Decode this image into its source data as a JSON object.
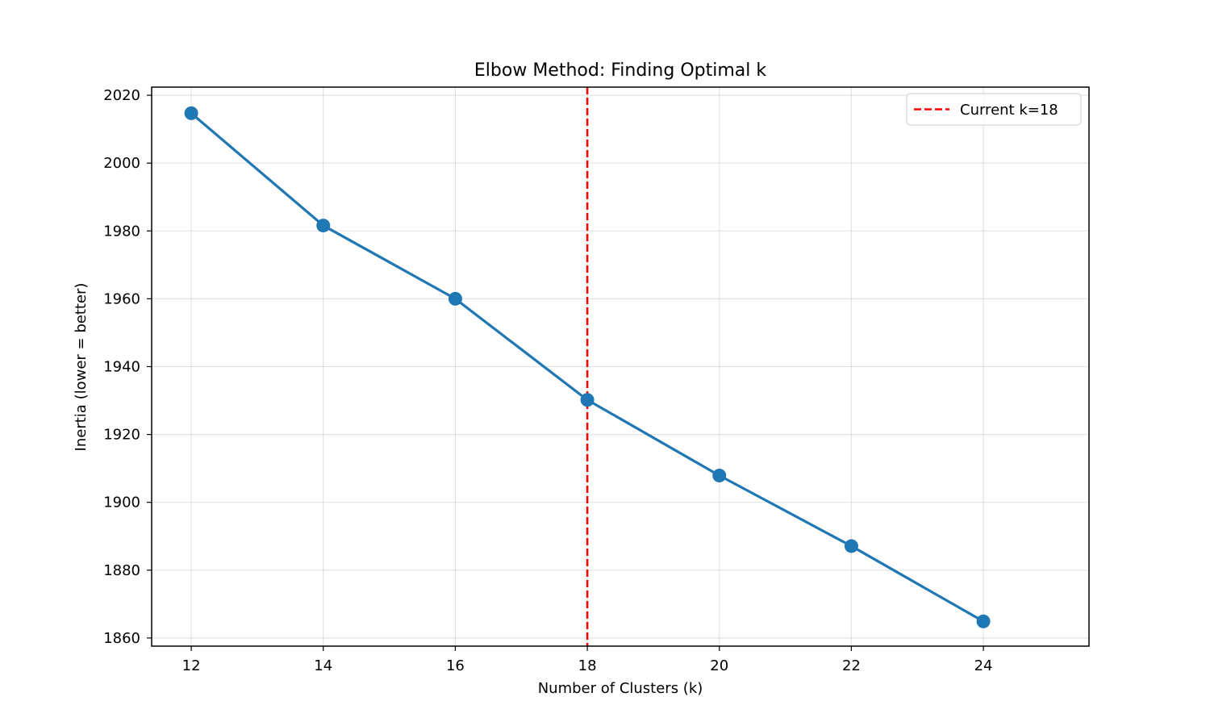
{
  "chart_data": {
    "type": "line",
    "title": "Elbow Method: Finding Optimal k",
    "xlabel": "Number of Clusters (k)",
    "ylabel": "Inertia (lower = better)",
    "x": [
      12,
      14,
      16,
      18,
      20,
      22,
      24
    ],
    "series": [
      {
        "values": [
          2014.7,
          1981.6,
          1960.0,
          1930.2,
          1907.9,
          1887.1,
          1864.9
        ],
        "color": "#1f77b4",
        "marker": "circle"
      }
    ],
    "xlim": [
      11.4,
      25.6
    ],
    "ylim": [
      1857.6,
      2022.4
    ],
    "xticks": [
      "12",
      "14",
      "16",
      "18",
      "20",
      "22",
      "24"
    ],
    "yticks": [
      "1860",
      "1880",
      "1900",
      "1920",
      "1940",
      "1960",
      "1980",
      "2000",
      "2020"
    ],
    "grid": true,
    "reference_line": {
      "orientation": "vertical",
      "x": 18,
      "label": "Current k=18",
      "color": "#ff0000",
      "style": "dashed"
    },
    "legend": {
      "placement": "top-right",
      "entries": [
        "Current k=18"
      ]
    }
  }
}
